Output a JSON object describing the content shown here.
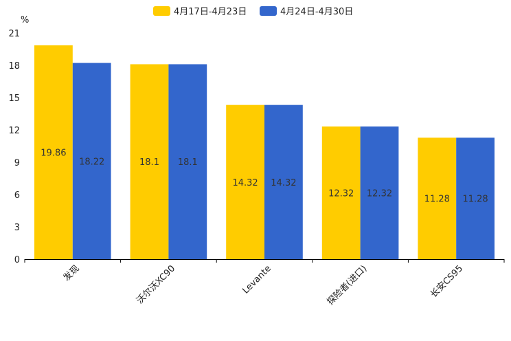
{
  "chart_data": {
    "type": "bar",
    "title": "",
    "xlabel": "",
    "ylabel": "%",
    "ylim": [
      0,
      21
    ],
    "yticks": [
      0,
      3,
      6,
      9,
      12,
      15,
      18,
      21
    ],
    "categories": [
      "发现",
      "沃尔沃XC90",
      "Levante",
      "探险者(进口)",
      "长安CS95"
    ],
    "series": [
      {
        "name": "4月17日-4月23日",
        "color": "#ffcc00",
        "values": [
          19.86,
          18.1,
          14.32,
          12.32,
          11.28
        ]
      },
      {
        "name": "4月24日-4月30日",
        "color": "#3366cc",
        "values": [
          18.22,
          18.1,
          14.32,
          12.32,
          11.28
        ]
      }
    ],
    "legend_position": "top-center"
  }
}
